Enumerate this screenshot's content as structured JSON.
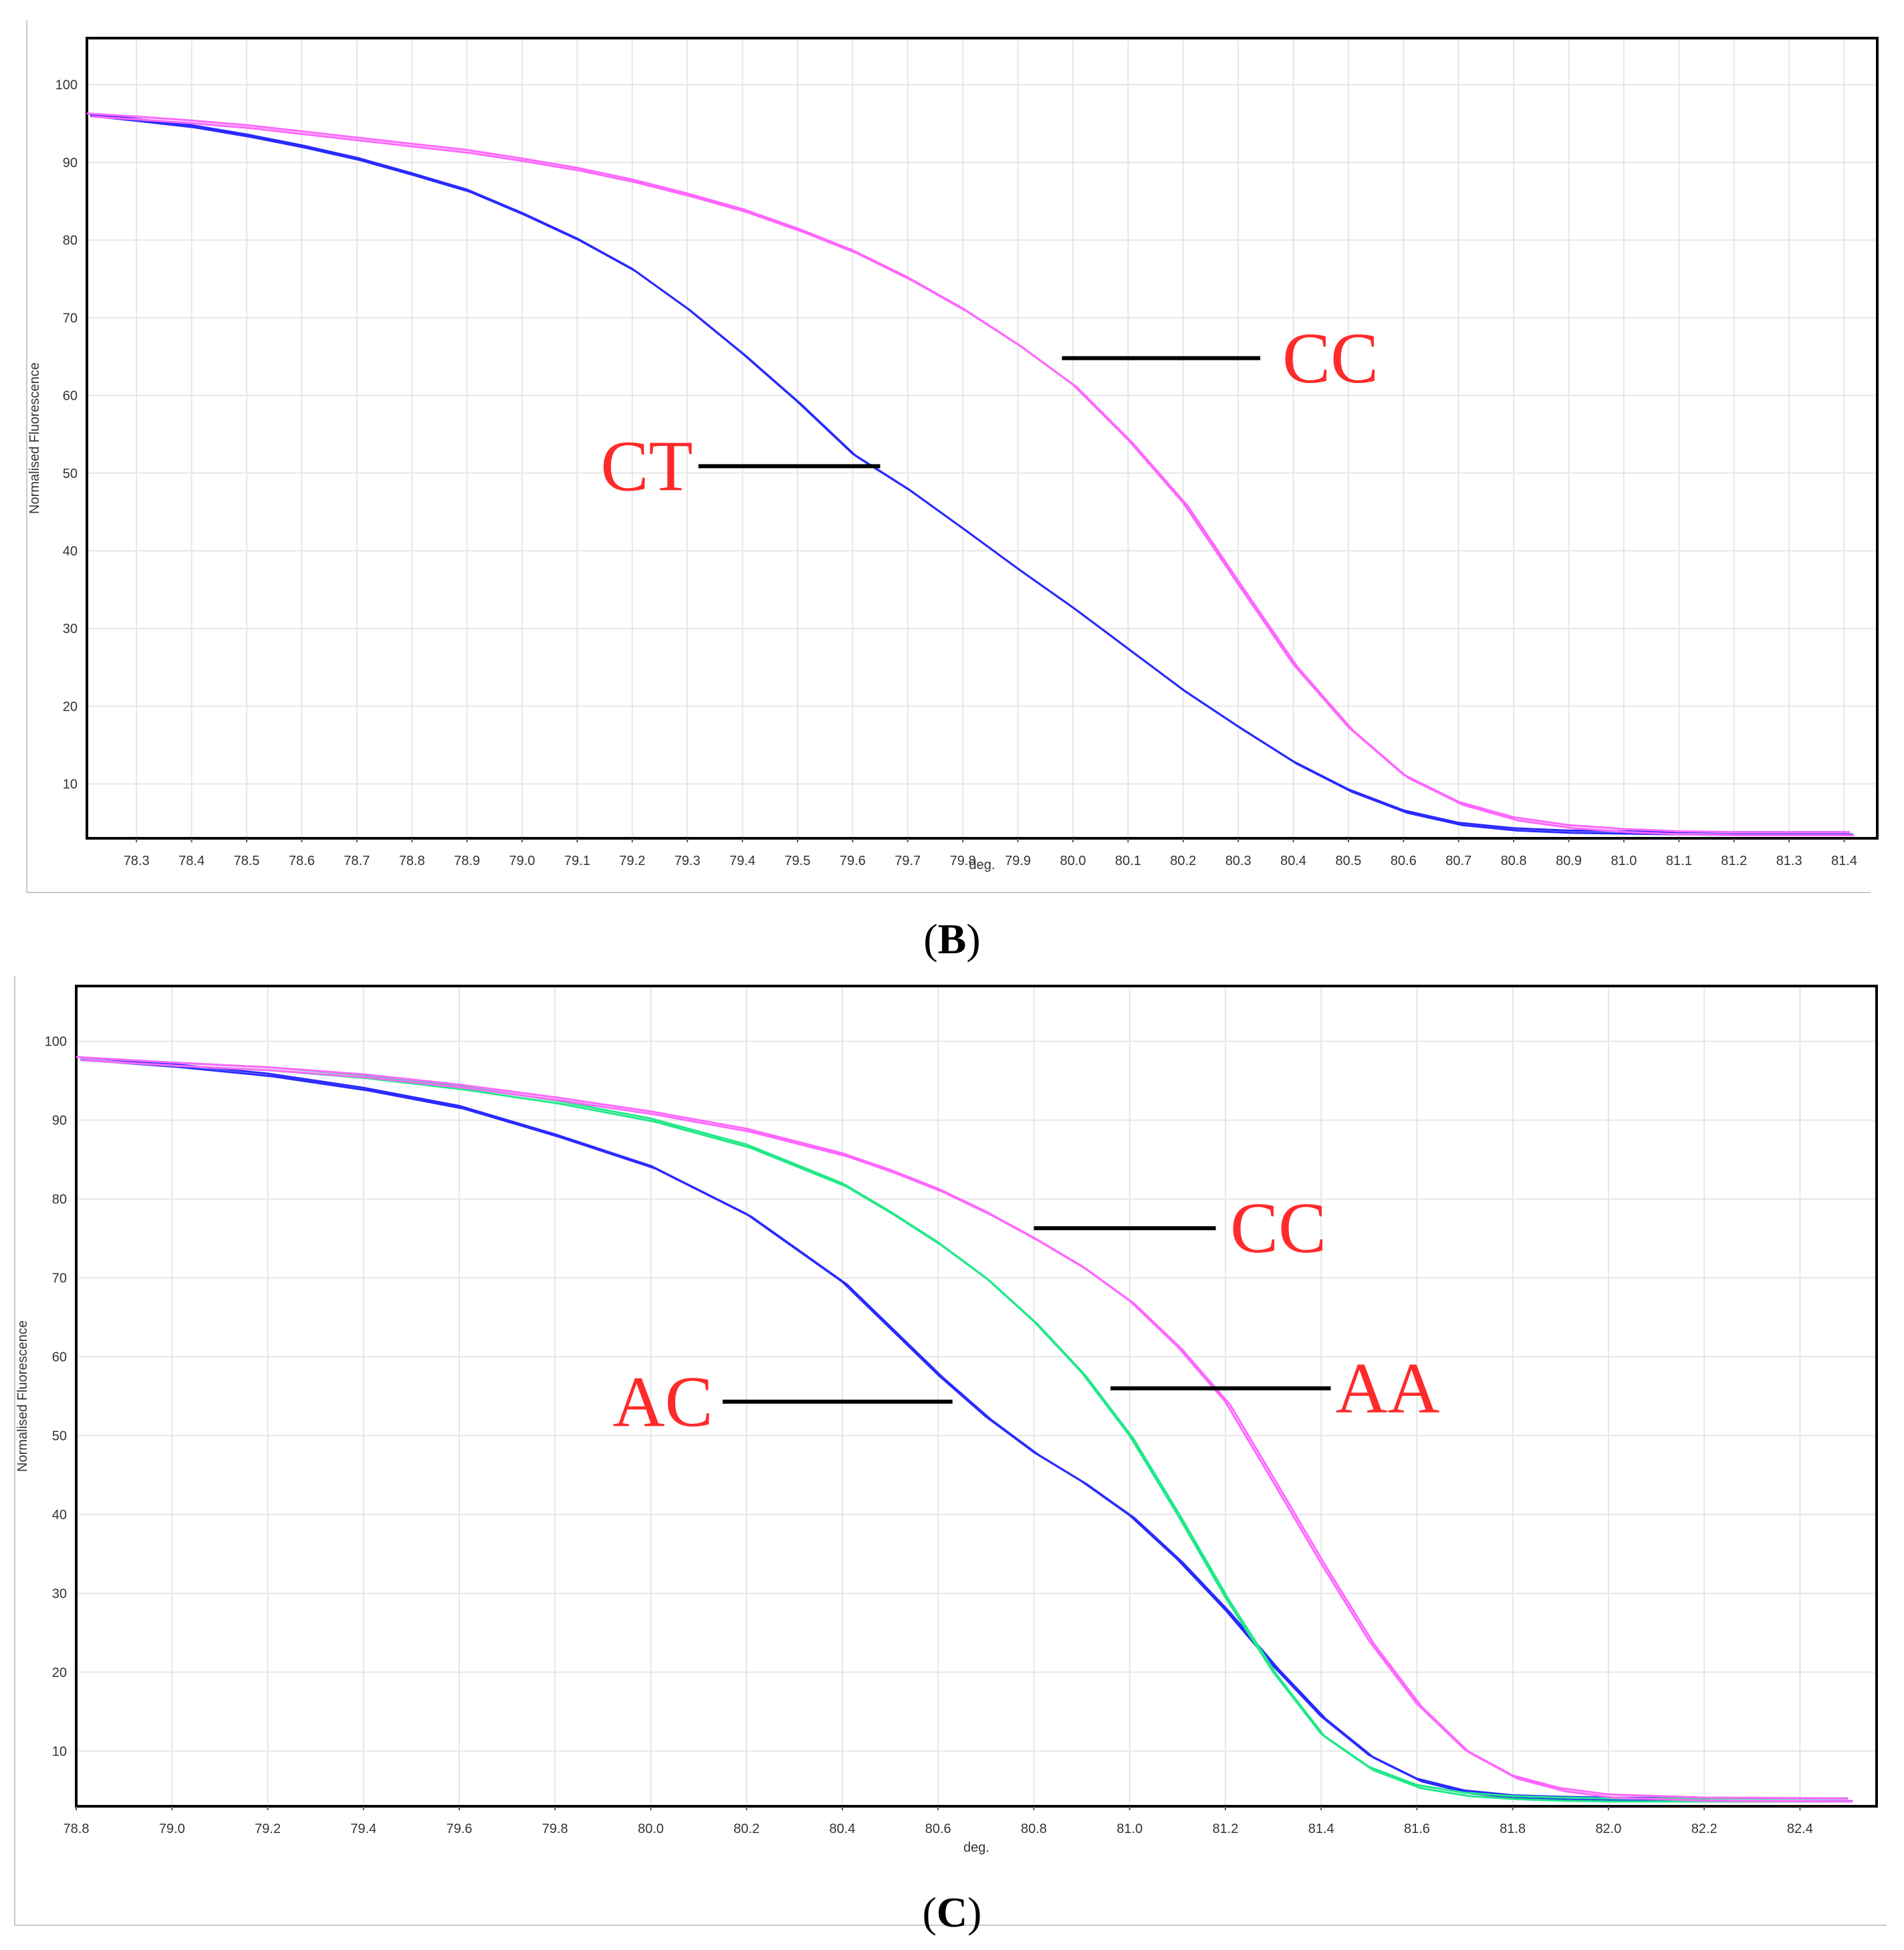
{
  "panels": {
    "B": {
      "caption_open": "(",
      "caption_letter": "B",
      "caption_close": ")"
    },
    "C": {
      "caption_open": "(",
      "caption_letter": "C",
      "caption_close": ")"
    }
  },
  "colors": {
    "CT": "#2a2aff",
    "AC": "#2a2aff",
    "CC": "#ff66ff",
    "AA": "#22e888",
    "grid": "#e6e6e6",
    "annotation": "#ff2a2a"
  },
  "chart_data": [
    {
      "type": "line",
      "xlabel": "deg.",
      "ylabel": "Normalised Fluorescence",
      "xlim": [
        78.21,
        81.46
      ],
      "ylim": [
        3,
        106
      ],
      "xticks": [
        "78.3",
        "78.4",
        "78.5",
        "78.6",
        "78.7",
        "78.8",
        "78.9",
        "79.0",
        "79.1",
        "79.2",
        "79.3",
        "79.4",
        "79.5",
        "79.6",
        "79.7",
        "79.8",
        "79.9",
        "80.0",
        "80.1",
        "80.2",
        "80.3",
        "80.4",
        "80.5",
        "80.6",
        "80.7",
        "80.8",
        "80.9",
        "81.0",
        "81.1",
        "81.2",
        "81.3",
        "81.4"
      ],
      "yticks": [
        "10",
        "20",
        "30",
        "40",
        "50",
        "60",
        "70",
        "80",
        "90",
        "100"
      ],
      "grid": true,
      "series": [
        {
          "name": "CT",
          "color_key": "CT",
          "offset": [
            0.006,
            -0.3
          ],
          "x": [
            78.21,
            78.3,
            78.4,
            78.5,
            78.6,
            78.7,
            78.8,
            78.9,
            79.0,
            79.1,
            79.2,
            79.3,
            79.4,
            79.5,
            79.6,
            79.7,
            79.8,
            79.9,
            80.0,
            80.1,
            80.2,
            80.3,
            80.4,
            80.5,
            80.6,
            80.7,
            80.8,
            80.9,
            81.0,
            81.1,
            81.2,
            81.3,
            81.41
          ],
          "y": [
            96.3,
            95.6,
            94.8,
            93.6,
            92.2,
            90.6,
            88.6,
            86.5,
            83.5,
            80.2,
            76.3,
            71.2,
            65.4,
            59.2,
            52.5,
            48.0,
            42.9,
            37.7,
            32.7,
            27.4,
            22.1,
            17.4,
            12.9,
            9.3,
            6.6,
            5.0,
            4.3,
            4.0,
            3.9,
            3.8,
            3.8,
            3.8,
            3.8
          ]
        },
        {
          "name": "CC",
          "color_key": "CC",
          "offset": [
            0.008,
            -0.4
          ],
          "x": [
            78.21,
            78.3,
            78.4,
            78.5,
            78.6,
            78.7,
            78.8,
            78.9,
            79.0,
            79.1,
            79.2,
            79.3,
            79.4,
            79.5,
            79.6,
            79.7,
            79.8,
            79.9,
            80.0,
            80.1,
            80.2,
            80.3,
            80.4,
            80.5,
            80.6,
            80.7,
            80.8,
            80.9,
            81.0,
            81.1,
            81.2,
            81.3,
            81.41
          ],
          "y": [
            96.3,
            95.9,
            95.4,
            94.8,
            94.0,
            93.2,
            92.4,
            91.6,
            90.5,
            89.3,
            87.8,
            86.0,
            84.0,
            81.5,
            78.7,
            75.2,
            71.2,
            66.6,
            61.4,
            54.3,
            46.2,
            35.7,
            25.4,
            17.3,
            11.2,
            7.7,
            5.7,
            4.7,
            4.2,
            3.9,
            3.8,
            3.8,
            3.8
          ]
        }
      ],
      "annotations": [
        {
          "text": "CC",
          "x1": 79.98,
          "x2": 80.34,
          "y": 64.8,
          "text_x": 80.38,
          "text_y": 64.8,
          "side": "right"
        },
        {
          "text": "CT",
          "x1": 79.32,
          "x2": 79.65,
          "y": 50.9,
          "text_x": 79.31,
          "text_y": 50.9,
          "side": "left"
        }
      ]
    },
    {
      "type": "line",
      "xlabel": "deg.",
      "ylabel": "Normalised Fluorescence",
      "xlim": [
        78.8,
        82.56
      ],
      "ylim": [
        3,
        107
      ],
      "xticks": [
        "78.8",
        "79.0",
        "79.2",
        "79.4",
        "79.6",
        "79.8",
        "80.0",
        "80.2",
        "80.4",
        "80.6",
        "80.8",
        "81.0",
        "81.2",
        "81.4",
        "81.6",
        "81.8",
        "82.0",
        "82.2",
        "82.4"
      ],
      "yticks": [
        "10",
        "20",
        "30",
        "40",
        "50",
        "60",
        "70",
        "80",
        "90",
        "100"
      ],
      "grid": true,
      "series": [
        {
          "name": "AC",
          "color_key": "AC",
          "offset": [
            0.01,
            -0.35
          ],
          "x": [
            78.8,
            79.0,
            79.2,
            79.4,
            79.6,
            79.8,
            80.0,
            80.2,
            80.4,
            80.5,
            80.6,
            80.7,
            80.8,
            80.9,
            81.0,
            81.1,
            81.2,
            81.3,
            81.4,
            81.5,
            81.6,
            81.7,
            81.8,
            81.9,
            82.0,
            82.2,
            82.5
          ],
          "y": [
            98.0,
            97.1,
            95.9,
            94.1,
            91.8,
            88.2,
            84.2,
            78.1,
            69.5,
            63.6,
            57.7,
            52.4,
            47.9,
            44.2,
            39.9,
            34.3,
            27.9,
            20.8,
            14.4,
            9.5,
            6.5,
            5.0,
            4.4,
            4.2,
            4.1,
            4.0,
            4.0
          ]
        },
        {
          "name": "AA",
          "color_key": "AA",
          "offset": [
            0.008,
            -0.4
          ],
          "x": [
            78.8,
            79.0,
            79.2,
            79.4,
            79.6,
            79.8,
            80.0,
            80.2,
            80.4,
            80.5,
            80.6,
            80.7,
            80.8,
            80.9,
            81.0,
            81.1,
            81.2,
            81.3,
            81.4,
            81.5,
            81.6,
            81.7,
            81.8,
            81.9,
            82.0,
            82.2,
            82.5
          ],
          "y": [
            98.0,
            97.3,
            96.7,
            95.7,
            94.3,
            92.5,
            90.2,
            86.9,
            82.0,
            78.4,
            74.5,
            70.0,
            64.5,
            58.0,
            50.0,
            40.0,
            29.5,
            20.0,
            12.2,
            8.0,
            5.7,
            4.7,
            4.3,
            4.1,
            4.0,
            4.0,
            4.0
          ]
        },
        {
          "name": "CC",
          "color_key": "CC",
          "offset": [
            0.01,
            -0.4
          ],
          "x": [
            78.8,
            79.0,
            79.2,
            79.4,
            79.6,
            79.8,
            80.0,
            80.2,
            80.4,
            80.5,
            80.6,
            80.7,
            80.8,
            80.9,
            81.0,
            81.1,
            81.2,
            81.3,
            81.4,
            81.5,
            81.6,
            81.7,
            81.8,
            81.9,
            82.0,
            82.2,
            82.5
          ],
          "y": [
            98.0,
            97.3,
            96.7,
            95.8,
            94.5,
            92.9,
            91.1,
            88.9,
            85.8,
            83.7,
            81.3,
            78.4,
            75.1,
            71.5,
            67.1,
            61.3,
            54.3,
            44.1,
            33.8,
            24.0,
            16.0,
            10.2,
            6.9,
            5.3,
            4.5,
            4.1,
            4.0
          ]
        }
      ],
      "annotations": [
        {
          "text": "CC",
          "x1": 80.8,
          "x2": 81.18,
          "y": 76.3,
          "text_x": 81.21,
          "text_y": 76.3,
          "side": "right"
        },
        {
          "text": "AA",
          "x1": 80.96,
          "x2": 81.42,
          "y": 56.0,
          "text_x": 81.43,
          "text_y": 56.0,
          "side": "right"
        },
        {
          "text": "AC",
          "x1": 80.15,
          "x2": 80.63,
          "y": 54.3,
          "text_x": 80.13,
          "text_y": 54.3,
          "side": "left"
        }
      ]
    }
  ]
}
